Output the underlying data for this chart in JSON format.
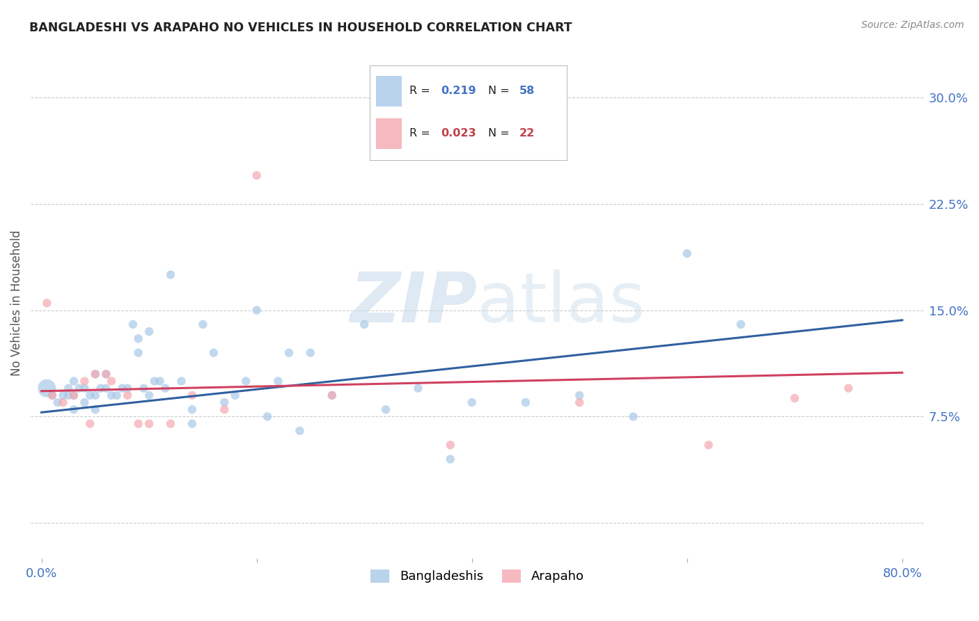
{
  "title": "BANGLADESHI VS ARAPAHO NO VEHICLES IN HOUSEHOLD CORRELATION CHART",
  "source": "Source: ZipAtlas.com",
  "ylabel_label": "No Vehicles in Household",
  "x_ticks": [
    0.0,
    0.2,
    0.4,
    0.6,
    0.8
  ],
  "x_tick_labels": [
    "0.0%",
    "",
    "",
    "",
    "80.0%"
  ],
  "y_ticks": [
    0.0,
    0.075,
    0.15,
    0.225,
    0.3
  ],
  "y_tick_labels": [
    "",
    "7.5%",
    "15.0%",
    "22.5%",
    "30.0%"
  ],
  "xlim": [
    -0.01,
    0.82
  ],
  "ylim": [
    -0.025,
    0.335
  ],
  "bangladeshi_R": "0.219",
  "bangladeshi_N": "58",
  "arapaho_R": "0.023",
  "arapaho_N": "22",
  "blue_color": "#a8c8e8",
  "pink_color": "#f4a8b0",
  "blue_line_color": "#3060a0",
  "pink_line_color": "#d04060",
  "watermark_zip": "ZIP",
  "watermark_atlas": "atlas",
  "background_color": "#ffffff",
  "grid_color": "#cccccc",
  "title_color": "#222222",
  "source_color": "#888888",
  "axis_label_color": "#555555",
  "tick_color_blue": "#4472c4",
  "tick_color_pink": "#c0404a",
  "bangladeshi_points_x": [
    0.005,
    0.01,
    0.015,
    0.02,
    0.025,
    0.025,
    0.03,
    0.03,
    0.03,
    0.035,
    0.04,
    0.04,
    0.045,
    0.05,
    0.05,
    0.05,
    0.055,
    0.06,
    0.06,
    0.065,
    0.07,
    0.075,
    0.08,
    0.085,
    0.09,
    0.09,
    0.095,
    0.1,
    0.1,
    0.105,
    0.11,
    0.115,
    0.12,
    0.13,
    0.14,
    0.14,
    0.15,
    0.16,
    0.17,
    0.18,
    0.19,
    0.2,
    0.21,
    0.22,
    0.23,
    0.24,
    0.25,
    0.27,
    0.3,
    0.32,
    0.35,
    0.38,
    0.4,
    0.45,
    0.5,
    0.55,
    0.6,
    0.65
  ],
  "bangladeshi_points_y": [
    0.095,
    0.09,
    0.085,
    0.09,
    0.09,
    0.095,
    0.08,
    0.09,
    0.1,
    0.095,
    0.085,
    0.095,
    0.09,
    0.08,
    0.09,
    0.105,
    0.095,
    0.095,
    0.105,
    0.09,
    0.09,
    0.095,
    0.095,
    0.14,
    0.12,
    0.13,
    0.095,
    0.135,
    0.09,
    0.1,
    0.1,
    0.095,
    0.175,
    0.1,
    0.07,
    0.08,
    0.14,
    0.12,
    0.085,
    0.09,
    0.1,
    0.15,
    0.075,
    0.1,
    0.12,
    0.065,
    0.12,
    0.09,
    0.14,
    0.08,
    0.095,
    0.045,
    0.085,
    0.085,
    0.09,
    0.075,
    0.19,
    0.14
  ],
  "bangladeshi_sizes": [
    350,
    80,
    80,
    80,
    80,
    80,
    80,
    80,
    80,
    80,
    80,
    80,
    80,
    80,
    80,
    80,
    80,
    80,
    80,
    80,
    80,
    80,
    80,
    80,
    80,
    80,
    80,
    80,
    80,
    80,
    80,
    80,
    80,
    80,
    80,
    80,
    80,
    80,
    80,
    80,
    80,
    80,
    80,
    80,
    80,
    80,
    80,
    80,
    80,
    80,
    80,
    80,
    80,
    80,
    80,
    80,
    80,
    80
  ],
  "arapaho_points_x": [
    0.005,
    0.01,
    0.02,
    0.03,
    0.04,
    0.045,
    0.05,
    0.06,
    0.065,
    0.08,
    0.09,
    0.1,
    0.12,
    0.14,
    0.17,
    0.2,
    0.27,
    0.38,
    0.5,
    0.62,
    0.7,
    0.75
  ],
  "arapaho_points_y": [
    0.155,
    0.09,
    0.085,
    0.09,
    0.1,
    0.07,
    0.105,
    0.105,
    0.1,
    0.09,
    0.07,
    0.07,
    0.07,
    0.09,
    0.08,
    0.245,
    0.09,
    0.055,
    0.085,
    0.055,
    0.088,
    0.095
  ],
  "arapaho_sizes": [
    80,
    80,
    80,
    80,
    80,
    80,
    80,
    80,
    80,
    80,
    80,
    80,
    80,
    80,
    80,
    80,
    80,
    80,
    80,
    80,
    80,
    80
  ],
  "blue_trendline_x": [
    0.0,
    0.8
  ],
  "blue_trendline_y": [
    0.078,
    0.143
  ],
  "pink_trendline_x": [
    0.0,
    0.8
  ],
  "pink_trendline_y": [
    0.093,
    0.106
  ]
}
